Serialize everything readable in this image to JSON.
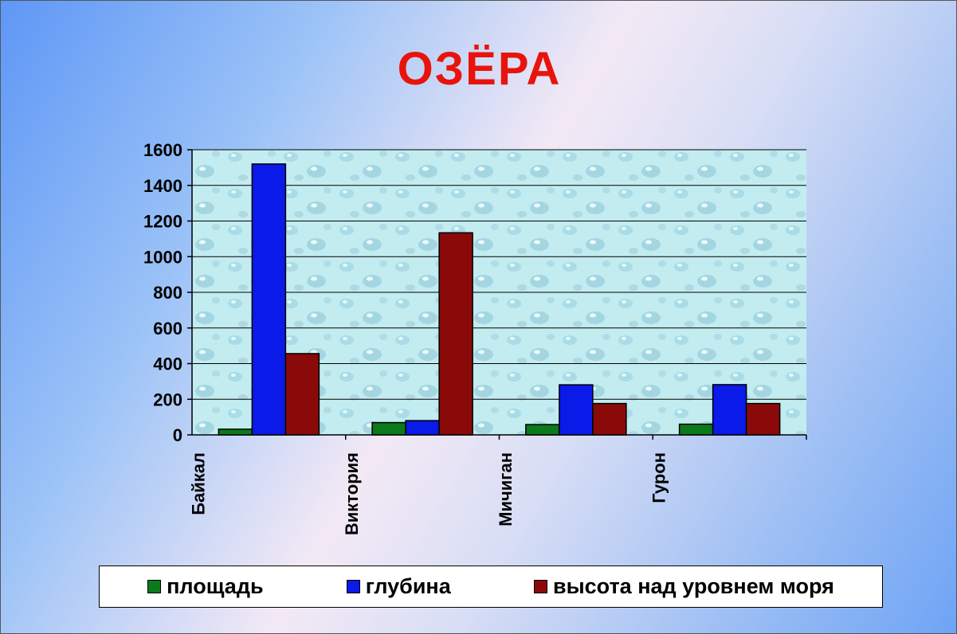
{
  "title": "ОЗЁРА",
  "colors": {
    "title": "#e8140c",
    "area": "#0a7a1a",
    "depth": "#0a1ae8",
    "altitude": "#8a0a0a",
    "plot_bg": "#c2ecf0"
  },
  "chart_data": {
    "type": "bar",
    "title": "",
    "categories": [
      "Байкал",
      "Виктория",
      "Мичиган",
      "Гурон"
    ],
    "series": [
      {
        "name": "площадь",
        "values": [
          32,
          69,
          58,
          60
        ],
        "color": "#0a7a1a"
      },
      {
        "name": "глубина",
        "values": [
          1520,
          80,
          281,
          282
        ],
        "color": "#0a1ae8"
      },
      {
        "name": "высота над уровнем моря",
        "values": [
          456,
          1134,
          176,
          176
        ],
        "color": "#8a0a0a"
      }
    ],
    "ylim": [
      0,
      1600
    ],
    "yticks": [
      0,
      200,
      400,
      600,
      800,
      1000,
      1200,
      1400,
      1600
    ],
    "grid": true,
    "legend_position": "bottom"
  }
}
